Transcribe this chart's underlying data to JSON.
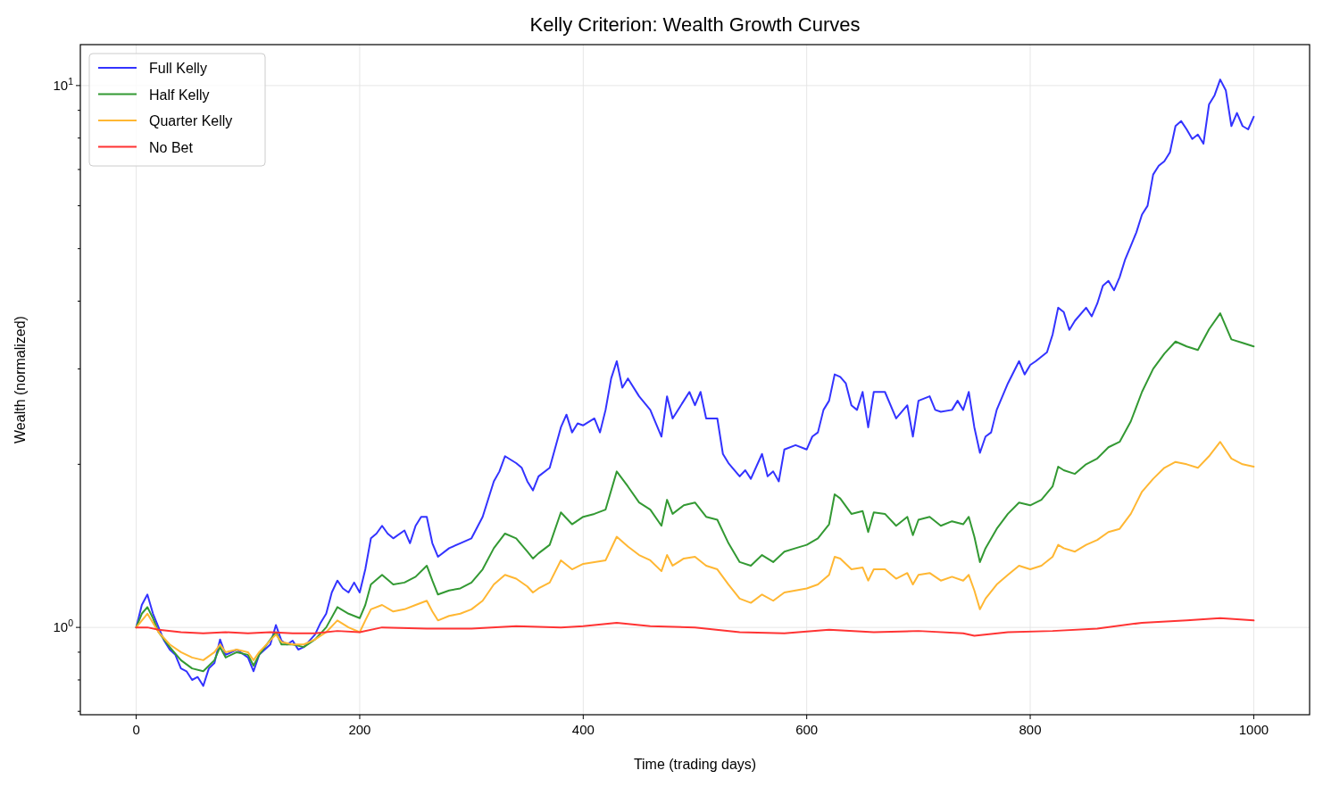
{
  "chart_data": {
    "type": "line",
    "title": "Kelly Criterion: Wealth Growth Curves",
    "xlabel": "Time (trading days)",
    "ylabel": "Wealth (normalized)",
    "log": "y",
    "grid": true,
    "legend": "top left",
    "line_style": "solid",
    "xlim": [
      -50,
      1050
    ],
    "xticks": [
      0,
      200,
      400,
      600,
      800,
      1000
    ],
    "ylim": [
      0.69,
      11.9
    ],
    "yticks": [
      {
        "value": 0.7,
        "label": null
      },
      {
        "value": 0.8,
        "label": null
      },
      {
        "value": 0.9,
        "label": null
      },
      {
        "value": 1,
        "label": "10$^{0}$"
      },
      {
        "value": 2,
        "label": null
      },
      {
        "value": 3,
        "label": null
      },
      {
        "value": 4,
        "label": null
      },
      {
        "value": 5,
        "label": null
      },
      {
        "value": 6,
        "label": null
      },
      {
        "value": 7,
        "label": null
      },
      {
        "value": 8,
        "label": null
      },
      {
        "value": 9,
        "label": null
      },
      {
        "value": 10,
        "label": "10$^{1}$"
      }
    ],
    "series": [
      {
        "name": "Full Kelly",
        "color": "#3333ff",
        "x": [
          0,
          5,
          10,
          15,
          20,
          25,
          30,
          35,
          40,
          45,
          50,
          55,
          60,
          65,
          70,
          75,
          80,
          90,
          100,
          105,
          110,
          120,
          125,
          130,
          135,
          140,
          145,
          150,
          160,
          165,
          170,
          175,
          180,
          185,
          190,
          195,
          200,
          205,
          210,
          215,
          220,
          225,
          230,
          240,
          245,
          250,
          255,
          260,
          265,
          270,
          280,
          290,
          300,
          310,
          320,
          325,
          330,
          340,
          345,
          350,
          355,
          360,
          370,
          380,
          385,
          390,
          395,
          400,
          410,
          415,
          420,
          425,
          430,
          435,
          440,
          450,
          460,
          465,
          470,
          475,
          480,
          490,
          495,
          500,
          505,
          510,
          520,
          525,
          530,
          540,
          545,
          550,
          560,
          565,
          570,
          575,
          580,
          590,
          600,
          605,
          610,
          615,
          620,
          625,
          630,
          635,
          640,
          645,
          650,
          655,
          660,
          670,
          680,
          690,
          695,
          700,
          710,
          715,
          720,
          730,
          735,
          740,
          745,
          750,
          755,
          760,
          765,
          770,
          780,
          790,
          795,
          800,
          805,
          810,
          815,
          820,
          825,
          830,
          835,
          840,
          850,
          855,
          860,
          865,
          870,
          875,
          880,
          885,
          890,
          895,
          900,
          905,
          910,
          915,
          920,
          925,
          930,
          935,
          940,
          945,
          950,
          955,
          960,
          965,
          970,
          975,
          980,
          985,
          990,
          995,
          1000
        ],
        "values": [
          1.0,
          1.1,
          1.15,
          1.06,
          1.0,
          0.945,
          0.91,
          0.89,
          0.84,
          0.83,
          0.8,
          0.81,
          0.78,
          0.84,
          0.86,
          0.95,
          0.89,
          0.91,
          0.88,
          0.83,
          0.89,
          0.93,
          1.01,
          0.945,
          0.93,
          0.945,
          0.91,
          0.92,
          0.97,
          1.02,
          1.06,
          1.16,
          1.22,
          1.18,
          1.16,
          1.21,
          1.16,
          1.28,
          1.46,
          1.49,
          1.54,
          1.49,
          1.46,
          1.51,
          1.43,
          1.54,
          1.6,
          1.6,
          1.43,
          1.35,
          1.4,
          1.43,
          1.46,
          1.6,
          1.86,
          1.94,
          2.07,
          2.01,
          1.97,
          1.86,
          1.79,
          1.9,
          1.97,
          2.34,
          2.47,
          2.29,
          2.38,
          2.36,
          2.43,
          2.29,
          2.52,
          2.88,
          3.1,
          2.77,
          2.88,
          2.67,
          2.52,
          2.38,
          2.25,
          2.67,
          2.43,
          2.62,
          2.72,
          2.57,
          2.72,
          2.43,
          2.43,
          2.09,
          2.01,
          1.9,
          1.95,
          1.88,
          2.09,
          1.9,
          1.94,
          1.86,
          2.13,
          2.17,
          2.13,
          2.25,
          2.29,
          2.52,
          2.62,
          2.93,
          2.9,
          2.82,
          2.57,
          2.52,
          2.72,
          2.34,
          2.72,
          2.72,
          2.43,
          2.57,
          2.25,
          2.62,
          2.67,
          2.52,
          2.5,
          2.52,
          2.62,
          2.52,
          2.72,
          2.34,
          2.1,
          2.25,
          2.29,
          2.52,
          2.82,
          3.1,
          2.93,
          3.05,
          3.1,
          3.16,
          3.22,
          3.47,
          3.89,
          3.82,
          3.54,
          3.68,
          3.89,
          3.75,
          3.96,
          4.27,
          4.36,
          4.19,
          4.43,
          4.78,
          5.06,
          5.36,
          5.78,
          6.0,
          6.85,
          7.11,
          7.25,
          7.53,
          8.42,
          8.6,
          8.3,
          7.97,
          8.12,
          7.81,
          9.23,
          9.6,
          10.26,
          9.8,
          8.42,
          8.9,
          8.42,
          8.3,
          8.76
        ]
      },
      {
        "name": "Half Kelly",
        "color": "#339933",
        "x": [
          0,
          5,
          10,
          15,
          20,
          30,
          40,
          50,
          60,
          70,
          75,
          80,
          90,
          100,
          105,
          110,
          125,
          130,
          140,
          150,
          160,
          170,
          180,
          190,
          200,
          205,
          210,
          220,
          230,
          240,
          250,
          260,
          265,
          270,
          280,
          290,
          300,
          310,
          320,
          330,
          340,
          350,
          355,
          360,
          370,
          380,
          390,
          400,
          410,
          420,
          430,
          440,
          450,
          460,
          470,
          475,
          480,
          490,
          500,
          510,
          520,
          530,
          540,
          550,
          560,
          570,
          580,
          590,
          600,
          610,
          620,
          625,
          630,
          640,
          650,
          655,
          660,
          670,
          680,
          690,
          695,
          700,
          710,
          720,
          730,
          740,
          745,
          750,
          755,
          760,
          770,
          780,
          790,
          800,
          810,
          820,
          825,
          830,
          840,
          850,
          860,
          870,
          880,
          890,
          900,
          910,
          920,
          930,
          940,
          950,
          960,
          970,
          980,
          990,
          1000
        ],
        "values": [
          1.0,
          1.06,
          1.09,
          1.04,
          0.98,
          0.92,
          0.87,
          0.84,
          0.83,
          0.87,
          0.92,
          0.88,
          0.9,
          0.89,
          0.85,
          0.89,
          0.98,
          0.93,
          0.93,
          0.92,
          0.95,
          1.0,
          1.09,
          1.06,
          1.04,
          1.1,
          1.2,
          1.25,
          1.2,
          1.21,
          1.24,
          1.3,
          1.22,
          1.15,
          1.17,
          1.18,
          1.21,
          1.28,
          1.4,
          1.49,
          1.46,
          1.38,
          1.34,
          1.37,
          1.42,
          1.63,
          1.55,
          1.6,
          1.62,
          1.65,
          1.94,
          1.82,
          1.7,
          1.65,
          1.54,
          1.72,
          1.62,
          1.68,
          1.7,
          1.6,
          1.58,
          1.43,
          1.32,
          1.3,
          1.36,
          1.32,
          1.38,
          1.4,
          1.42,
          1.46,
          1.55,
          1.76,
          1.73,
          1.62,
          1.64,
          1.5,
          1.63,
          1.62,
          1.54,
          1.6,
          1.48,
          1.58,
          1.6,
          1.54,
          1.57,
          1.55,
          1.6,
          1.47,
          1.32,
          1.4,
          1.52,
          1.62,
          1.7,
          1.68,
          1.72,
          1.82,
          1.98,
          1.95,
          1.92,
          2.0,
          2.05,
          2.15,
          2.2,
          2.4,
          2.72,
          3.0,
          3.2,
          3.37,
          3.3,
          3.25,
          3.55,
          3.8,
          3.4,
          3.35,
          3.3
        ]
      },
      {
        "name": "Quarter Kelly",
        "color": "#ffb733",
        "x": [
          0,
          10,
          20,
          30,
          40,
          50,
          60,
          70,
          75,
          80,
          90,
          100,
          105,
          110,
          125,
          130,
          140,
          150,
          160,
          170,
          180,
          190,
          200,
          205,
          210,
          220,
          230,
          240,
          250,
          260,
          265,
          270,
          280,
          290,
          300,
          310,
          320,
          330,
          340,
          350,
          355,
          360,
          370,
          380,
          390,
          400,
          410,
          420,
          430,
          440,
          450,
          460,
          470,
          475,
          480,
          490,
          500,
          510,
          520,
          530,
          540,
          550,
          560,
          570,
          580,
          590,
          600,
          610,
          620,
          625,
          630,
          640,
          650,
          655,
          660,
          670,
          680,
          690,
          695,
          700,
          710,
          720,
          730,
          740,
          745,
          750,
          755,
          760,
          770,
          780,
          790,
          800,
          810,
          820,
          825,
          830,
          840,
          850,
          860,
          870,
          880,
          890,
          900,
          910,
          920,
          930,
          940,
          950,
          960,
          970,
          980,
          990,
          1000
        ],
        "values": [
          1.0,
          1.06,
          0.98,
          0.93,
          0.9,
          0.88,
          0.87,
          0.9,
          0.93,
          0.9,
          0.91,
          0.9,
          0.87,
          0.9,
          0.97,
          0.94,
          0.93,
          0.93,
          0.95,
          0.98,
          1.03,
          1.0,
          0.98,
          1.03,
          1.08,
          1.1,
          1.07,
          1.08,
          1.1,
          1.12,
          1.07,
          1.03,
          1.05,
          1.06,
          1.08,
          1.12,
          1.2,
          1.25,
          1.23,
          1.19,
          1.16,
          1.18,
          1.21,
          1.33,
          1.28,
          1.31,
          1.32,
          1.33,
          1.47,
          1.41,
          1.36,
          1.33,
          1.27,
          1.36,
          1.3,
          1.34,
          1.35,
          1.3,
          1.28,
          1.2,
          1.13,
          1.11,
          1.15,
          1.12,
          1.16,
          1.17,
          1.18,
          1.2,
          1.25,
          1.35,
          1.34,
          1.28,
          1.29,
          1.22,
          1.28,
          1.28,
          1.23,
          1.26,
          1.2,
          1.25,
          1.26,
          1.22,
          1.24,
          1.22,
          1.25,
          1.17,
          1.08,
          1.13,
          1.2,
          1.25,
          1.3,
          1.28,
          1.3,
          1.35,
          1.42,
          1.4,
          1.38,
          1.42,
          1.45,
          1.5,
          1.52,
          1.62,
          1.78,
          1.88,
          1.97,
          2.02,
          2.0,
          1.97,
          2.07,
          2.2,
          2.05,
          2.0,
          1.98
        ]
      },
      {
        "name": "No Bet",
        "color": "#ff3333",
        "x": [
          0,
          10,
          20,
          40,
          60,
          80,
          100,
          120,
          140,
          160,
          180,
          200,
          220,
          260,
          300,
          340,
          380,
          400,
          430,
          460,
          500,
          540,
          580,
          620,
          660,
          700,
          740,
          750,
          780,
          820,
          860,
          900,
          940,
          970,
          1000
        ],
        "values": [
          1.0,
          1.0,
          0.99,
          0.98,
          0.975,
          0.98,
          0.975,
          0.98,
          0.975,
          0.975,
          0.985,
          0.98,
          1.0,
          0.995,
          0.995,
          1.005,
          1.0,
          1.005,
          1.02,
          1.005,
          1.0,
          0.98,
          0.975,
          0.99,
          0.98,
          0.985,
          0.975,
          0.965,
          0.98,
          0.985,
          0.995,
          1.02,
          1.03,
          1.04,
          1.03
        ]
      }
    ]
  }
}
